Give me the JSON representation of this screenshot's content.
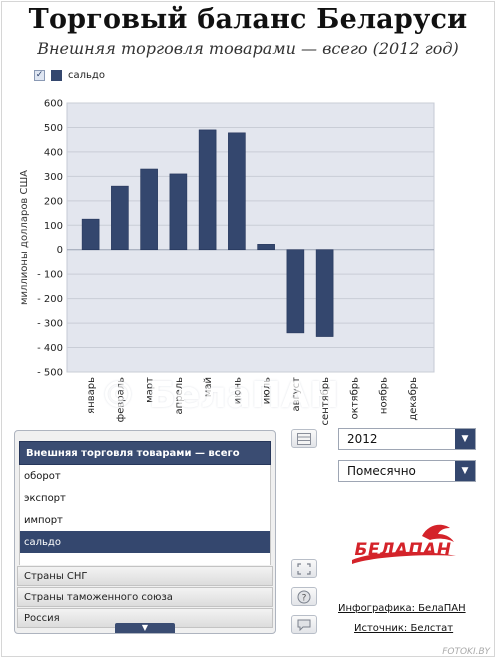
{
  "header": {
    "title": "Торговый баланс Беларуси",
    "subtitle": "Внешняя торговля товарами — всего (2012 год)"
  },
  "legend": {
    "checkbox_mark": "✓",
    "entry": "сальдо"
  },
  "watermark": "© БелаПАН",
  "colors": {
    "bar": "#34476e",
    "plot_bg": "#e3e6ee",
    "selected": "#34476e",
    "logo": "#d4232a"
  },
  "chart_data": {
    "type": "bar",
    "categories": [
      "январь",
      "февраль",
      "март",
      "апрель",
      "май",
      "июнь",
      "июль",
      "август",
      "сентябрь",
      "октябрь",
      "ноябрь",
      "декабрь"
    ],
    "series": [
      {
        "name": "сальдо",
        "values": [
          125,
          260,
          330,
          310,
          490,
          478,
          22,
          -340,
          -355,
          null,
          null,
          null
        ]
      }
    ],
    "ylabel": "миллионы долларов США",
    "ylim": [
      -500,
      600
    ],
    "yticks": [
      600,
      500,
      400,
      300,
      200,
      100,
      0,
      -100,
      -200,
      -300,
      -400,
      -500
    ],
    "ytick_labels": [
      "600",
      "500",
      "400",
      "300",
      "200",
      "100",
      "0",
      "- 100",
      "- 200",
      "- 300",
      "- 400",
      "- 500"
    ],
    "grid": true,
    "legend_position": "top-left"
  },
  "panel": {
    "main_header": "Внешняя торговля товарами — всего",
    "items": [
      {
        "label": "оборот",
        "selected": false
      },
      {
        "label": "экспорт",
        "selected": false
      },
      {
        "label": "импорт",
        "selected": false
      },
      {
        "label": "сальдо",
        "selected": true
      }
    ],
    "groups": [
      "Страны СНГ",
      "Страны таможенного союза",
      "Россия"
    ],
    "scroll_icon": "▼"
  },
  "controls": {
    "year": "2012",
    "period": "Помесячно",
    "dropdown_icon": "▼",
    "table_icon": "table-icon",
    "expand_icon": "expand-icon",
    "help_icon": "help-icon",
    "comment_icon": "comment-icon"
  },
  "brand": {
    "logo_text": "БЕЛАПАН"
  },
  "credits": {
    "infographic": "Инфографика: БелаПАН",
    "source": "Источник: Белстат"
  },
  "footer": "FOTOKI.BY"
}
